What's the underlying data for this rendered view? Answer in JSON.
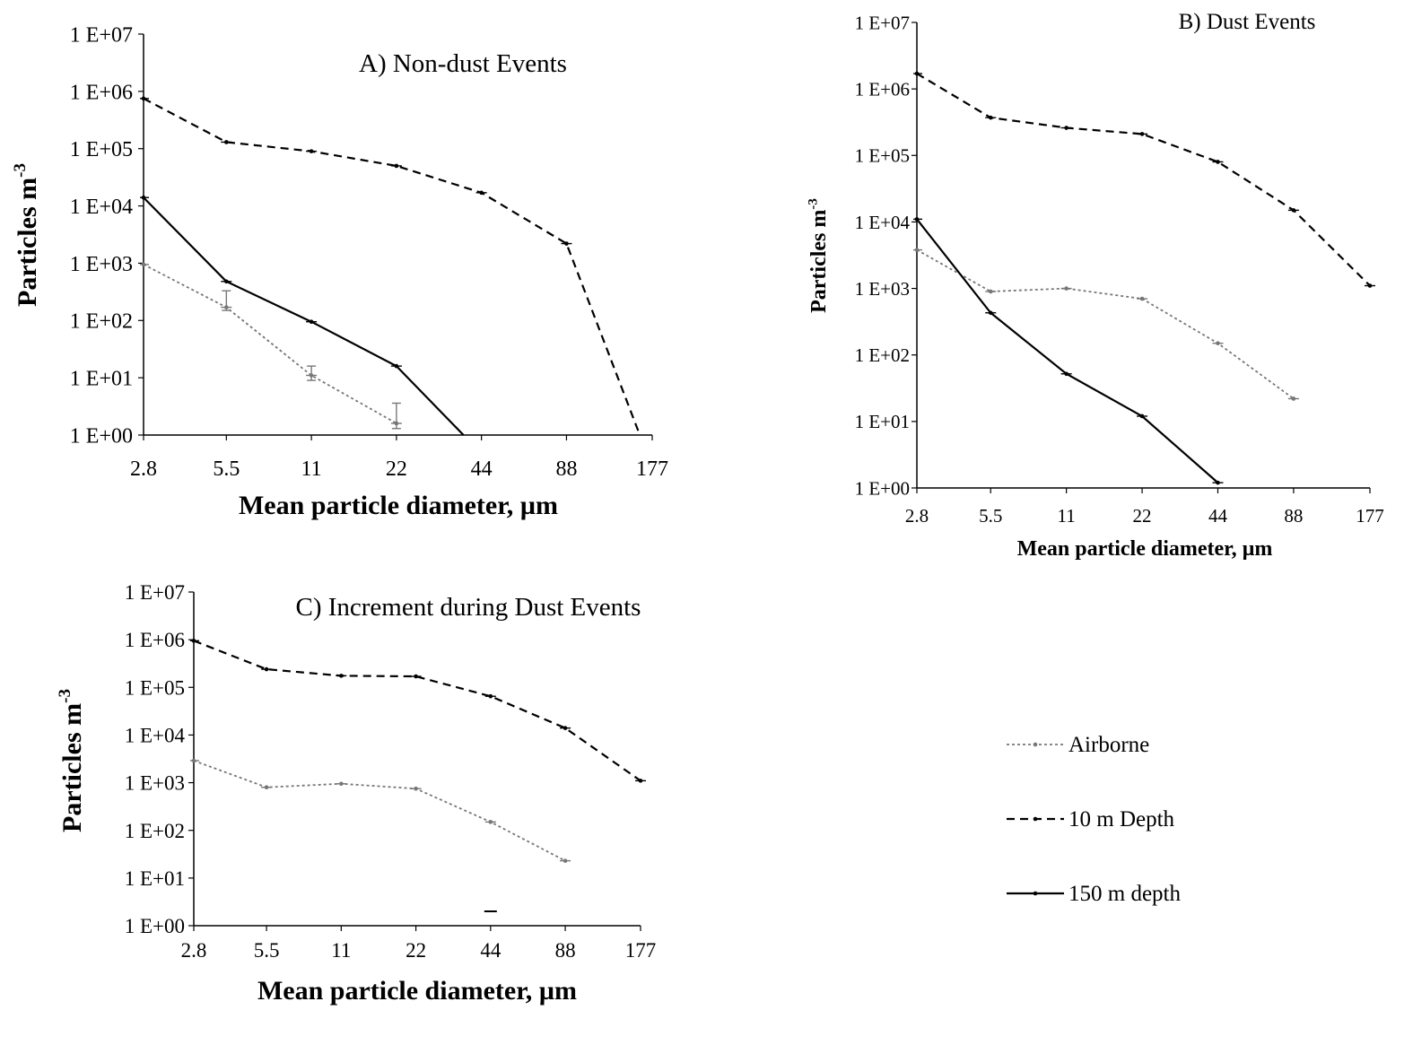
{
  "series_styles": {
    "Airborne": {
      "color": "#777777",
      "dash": "3,3"
    },
    "10 m Depth": {
      "color": "#000000",
      "dash": "9,6"
    },
    "150 m depth": {
      "color": "#000000",
      "dash": ""
    }
  },
  "legend": {
    "items": [
      "Airborne",
      "10 m Depth",
      "150 m depth"
    ]
  },
  "chart_data": [
    {
      "type": "line",
      "title": "A) Non-dust Events",
      "xlabel": "Mean particle diameter, µm",
      "ylabel": "Particles m",
      "ylabel_sup": "-3",
      "x_scale": "log",
      "y_scale": "log",
      "categories": [
        "2.8",
        "5.5",
        "11",
        "22",
        "44",
        "88",
        "177"
      ],
      "ytick_labels": [
        "1 E+00",
        "1 E+01",
        "1 E+02",
        "1 E+03",
        "1 E+04",
        "1 E+05",
        "1 E+06",
        "1 E+07"
      ],
      "ylim": [
        1,
        10000000
      ],
      "grid": false,
      "series": [
        {
          "name": "Airborne",
          "x": [
            2.8,
            5.5,
            11,
            22
          ],
          "values": [
            950,
            170,
            11,
            1.6
          ],
          "error_upper": [
            null,
            330,
            16,
            3.6
          ],
          "error_lower": [
            null,
            150,
            9,
            1.3
          ]
        },
        {
          "name": "10 m Depth",
          "x": [
            2.8,
            5.5,
            11,
            22,
            44,
            88,
            160
          ],
          "values": [
            750000,
            130000,
            90000,
            50000,
            17000,
            2200,
            1
          ]
        },
        {
          "name": "150 m depth",
          "x": [
            2.8,
            5.5,
            11,
            22,
            38
          ],
          "values": [
            14000,
            480,
            95,
            16,
            1
          ]
        }
      ]
    },
    {
      "type": "line",
      "title": "B) Dust Events",
      "xlabel": "Mean particle diameter, µm",
      "ylabel": "Particles  m",
      "ylabel_sup": "-3",
      "x_scale": "log",
      "y_scale": "log",
      "categories": [
        "2.8",
        "5.5",
        "11",
        "22",
        "44",
        "88",
        "177"
      ],
      "ytick_labels": [
        "1 E+00",
        "1 E+01",
        "1 E+02",
        "1 E+03",
        "1 E+04",
        "1 E+05",
        "1 E+06",
        "1 E+07"
      ],
      "ylim": [
        1,
        10000000
      ],
      "grid": false,
      "series": [
        {
          "name": "Airborne",
          "x": [
            2.8,
            5.5,
            11,
            22,
            44,
            88
          ],
          "values": [
            3800,
            900,
            1000,
            700,
            150,
            22
          ]
        },
        {
          "name": "10 m Depth",
          "x": [
            2.8,
            5.5,
            11,
            22,
            44,
            88,
            177
          ],
          "values": [
            1700000,
            370000,
            260000,
            210000,
            80000,
            15000,
            1100
          ]
        },
        {
          "name": "150 m depth",
          "x": [
            2.8,
            5.5,
            11,
            22,
            44
          ],
          "values": [
            11000,
            430,
            52,
            12,
            1.2
          ]
        }
      ]
    },
    {
      "type": "line",
      "title": "C) Increment  during Dust Events",
      "xlabel": "Mean particle diameter, µm",
      "ylabel": "Particles m",
      "ylabel_sup": "-3",
      "x_scale": "log",
      "y_scale": "log",
      "categories": [
        "2.8",
        "5.5",
        "11",
        "22",
        "44",
        "88",
        "177"
      ],
      "ytick_labels": [
        "1 E+00",
        "1 E+01",
        "1 E+02",
        "1 E+03",
        "1 E+04",
        "1 E+05",
        "1 E+06",
        "1 E+07"
      ],
      "ylim": [
        1,
        10000000
      ],
      "grid": false,
      "series": [
        {
          "name": "Airborne",
          "x": [
            2.8,
            5.5,
            11,
            22,
            44,
            88
          ],
          "values": [
            2900,
            800,
            950,
            750,
            150,
            23
          ]
        },
        {
          "name": "10 m Depth",
          "x": [
            2.8,
            5.5,
            11,
            22,
            44,
            88,
            177
          ],
          "values": [
            950000,
            240000,
            175000,
            170000,
            65000,
            14000,
            1100
          ]
        },
        {
          "name": "150 m depth",
          "x": [
            44
          ],
          "values": [
            2
          ],
          "marker_only": true
        }
      ]
    }
  ]
}
